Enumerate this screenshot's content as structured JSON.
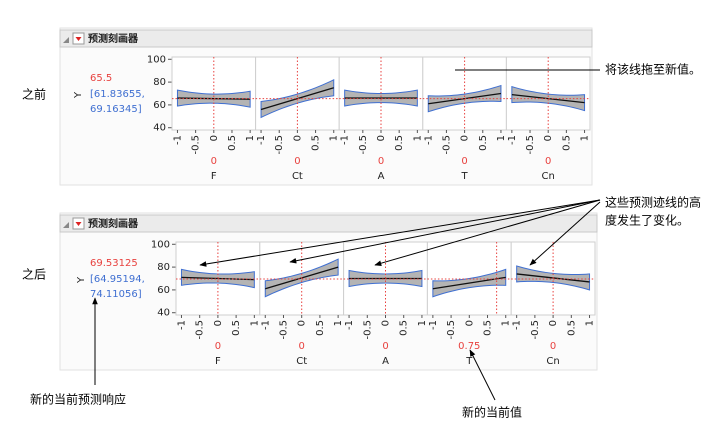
{
  "panels": [
    {
      "label": "之前",
      "title": "预测刻画器",
      "response": {
        "name": "Y",
        "value": 65.5,
        "ci": [
          "[61.83655,",
          "69.16345]"
        ]
      },
      "ylim": [
        38,
        102
      ],
      "yticks": [
        40,
        60,
        80,
        100
      ],
      "xlim": [
        -1.15,
        1.15
      ],
      "xticks": [
        -1,
        -0.5,
        0,
        0.5,
        1
      ],
      "factors": [
        {
          "name": "F",
          "current": 0,
          "curve": [
            66,
            65
          ],
          "band": [
            7,
            4
          ]
        },
        {
          "name": "Ct",
          "current": 0,
          "curve": [
            56,
            75
          ],
          "band": [
            7,
            4
          ]
        },
        {
          "name": "A",
          "current": 0,
          "curve": [
            66,
            66
          ],
          "band": [
            7,
            4
          ]
        },
        {
          "name": "T",
          "current": 0,
          "curve": [
            61,
            70
          ],
          "band": [
            7,
            4
          ]
        },
        {
          "name": "Cn",
          "current": 0,
          "curve": [
            69,
            62
          ],
          "band": [
            7,
            4
          ]
        }
      ]
    },
    {
      "label": "之后",
      "title": "预测刻画器",
      "response": {
        "name": "Y",
        "value": 69.53125,
        "ci": [
          "[64.95194,",
          "74.11056]"
        ]
      },
      "ylim": [
        38,
        102
      ],
      "yticks": [
        40,
        60,
        80,
        100
      ],
      "xlim": [
        -1.15,
        1.15
      ],
      "xticks": [
        -1,
        -0.5,
        0,
        0.5,
        1
      ],
      "factors": [
        {
          "name": "F",
          "current": 0,
          "curve": [
            71,
            69
          ],
          "band": [
            7,
            4
          ]
        },
        {
          "name": "Ct",
          "current": 0,
          "curve": [
            61,
            80
          ],
          "band": [
            7,
            4
          ]
        },
        {
          "name": "A",
          "current": 0,
          "curve": [
            70,
            70
          ],
          "band": [
            7,
            4
          ]
        },
        {
          "name": "T",
          "current": 0.75,
          "curve": [
            61,
            71
          ],
          "band": [
            7,
            4
          ]
        },
        {
          "name": "Cn",
          "current": 0,
          "curve": [
            74,
            67
          ],
          "band": [
            7,
            4
          ]
        }
      ]
    }
  ],
  "annotations": {
    "drag": "将该线拖至新值。",
    "heights": [
      "这些预测迹线的高",
      "度发生了变化。"
    ],
    "new_response": "新的当前预测响应",
    "new_current": "新的当前值"
  }
}
